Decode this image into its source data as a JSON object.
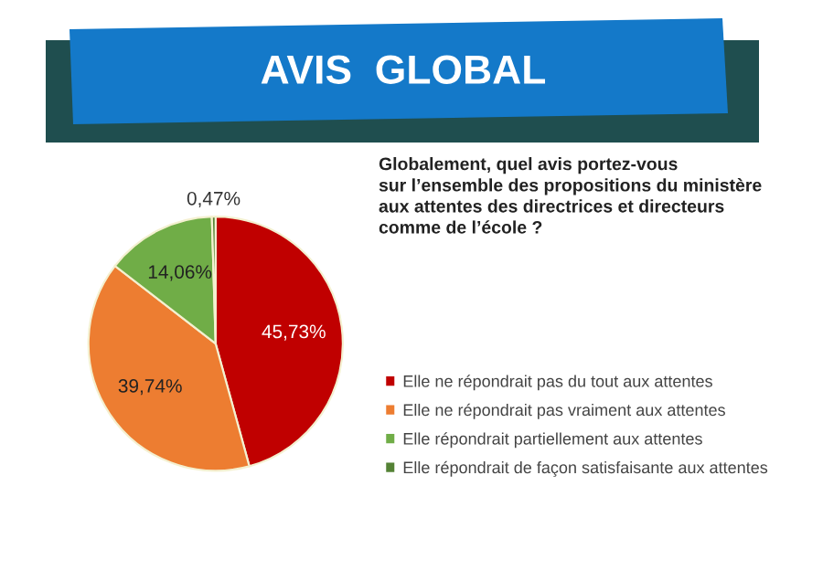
{
  "chart_data": {
    "type": "pie",
    "title": "AVIS  GLOBAL",
    "subtitle": "Globalement, quel avis portez-vous\nsur l’ensemble des propositions du ministère\naux attentes des directrices et directeurs\ncomme de l’école ?",
    "categories": [
      "Elle ne répondrait pas du tout aux attentes",
      "Elle ne répondrait pas vraiment aux attentes",
      "Elle répondrait partiellement aux attentes",
      "Elle répondrait de façon satisfaisante aux attentes"
    ],
    "values": [
      45.73,
      39.74,
      14.06,
      0.47
    ],
    "value_labels": [
      "45,73%",
      "39,74%",
      "14,06%",
      "0,47%"
    ],
    "colors": [
      "#c00000",
      "#ed7d31",
      "#70ad47",
      "#548235"
    ],
    "legend": "right"
  }
}
